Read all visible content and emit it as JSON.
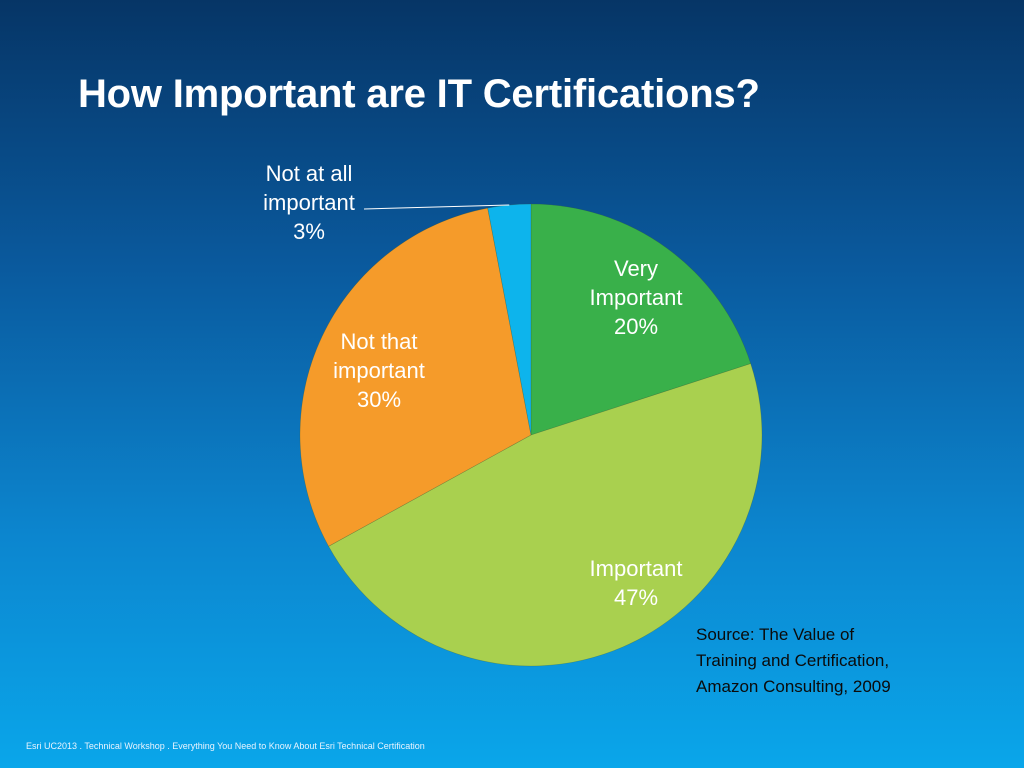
{
  "slide": {
    "title": "How Important are IT Certifications?",
    "source_lines": [
      "Source: The Value of",
      "Training and Certification,",
      "Amazon Consulting, 2009"
    ],
    "footer": "Esri UC2013 . Technical Workshop . Everything You Need to Know About  Esri Technical Certification"
  },
  "chart_data": {
    "type": "pie",
    "title": "How Important are IT Certifications?",
    "slices": [
      {
        "label_lines": [
          "Very",
          "Important",
          "20%"
        ],
        "value": 20,
        "color": "#39b04a"
      },
      {
        "label_lines": [
          "Important",
          "47%"
        ],
        "value": 47,
        "color": "#a9d04f"
      },
      {
        "label_lines": [
          "Not that",
          "important",
          "30%"
        ],
        "value": 30,
        "color": "#f59b2a"
      },
      {
        "label_lines": [
          "Not at all",
          "important",
          "3%"
        ],
        "value": 3,
        "color": "#0db4ec"
      }
    ]
  }
}
